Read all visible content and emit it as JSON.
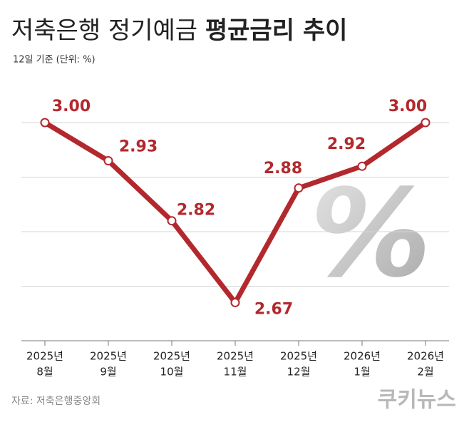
{
  "chart_data": {
    "type": "line",
    "title": "저축은행 정기예금",
    "title_emphasis": "평균금리 추이",
    "subtitle": "12일 기준 (단위: %)",
    "source": "자료: 저축은행중앙회",
    "watermark": "쿠키뉴스",
    "background_symbol": "%",
    "categories": [
      [
        "2025년",
        "8월"
      ],
      [
        "2025년",
        "9월"
      ],
      [
        "2025년",
        "10월"
      ],
      [
        "2025년",
        "11월"
      ],
      [
        "2025년",
        "12월"
      ],
      [
        "2026년",
        "1월"
      ],
      [
        "2026년",
        "2월"
      ]
    ],
    "values": [
      3.0,
      2.93,
      2.82,
      2.67,
      2.88,
      2.92,
      3.0
    ],
    "value_labels": [
      "3.00",
      "2.93",
      "2.82",
      "2.67",
      "2.88",
      "2.92",
      "3.00"
    ],
    "color": "#b3282d",
    "ylim": [
      2.6,
      3.0
    ],
    "yticks": [
      2.6,
      2.7,
      2.8,
      2.9,
      3.0
    ],
    "grid": true,
    "show_ytick_labels": false
  }
}
